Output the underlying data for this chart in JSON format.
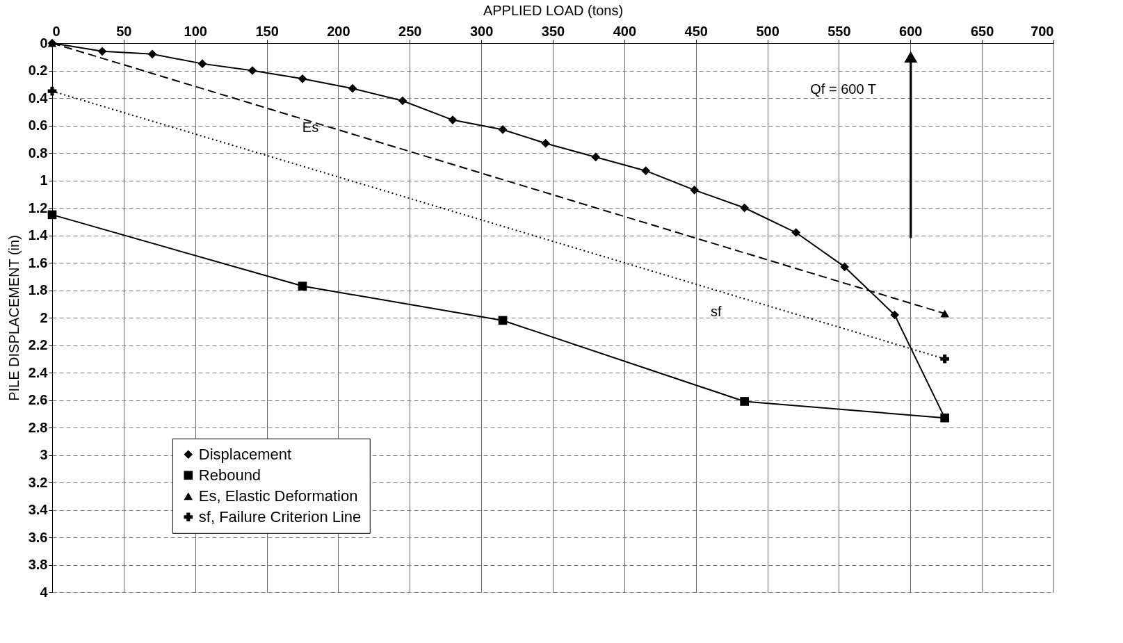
{
  "chart_data": {
    "type": "line",
    "xlabel": "APPLIED LOAD (tons)",
    "ylabel": "PILE DISPLACEMENT (in)",
    "xlim": [
      0,
      700
    ],
    "xticks": [
      0,
      50,
      100,
      150,
      200,
      250,
      300,
      350,
      400,
      450,
      500,
      550,
      600,
      650,
      700
    ],
    "ylim": [
      4,
      0
    ],
    "yticks": [
      0,
      0.2,
      0.4,
      0.6,
      0.8,
      1,
      1.2,
      1.4,
      1.6,
      1.8,
      2,
      2.2,
      2.4,
      2.6,
      2.8,
      3,
      3.2,
      3.4,
      3.6,
      3.8,
      4
    ],
    "grid": true,
    "legend": "bottom left",
    "series": [
      {
        "name": "Displacement",
        "color": "#000000",
        "marker": "diamond",
        "line_style": "solid",
        "x": [
          0,
          35,
          70,
          105,
          140,
          175,
          210,
          245,
          280,
          315,
          345,
          380,
          415,
          449,
          484,
          520,
          554,
          589,
          624
        ],
        "values": [
          0,
          0.06,
          0.08,
          0.15,
          0.2,
          0.26,
          0.33,
          0.42,
          0.56,
          0.63,
          0.73,
          0.83,
          0.93,
          1.07,
          1.2,
          1.38,
          1.63,
          1.98,
          2.73
        ]
      },
      {
        "name": "Rebound",
        "color": "#000000",
        "marker": "square",
        "line_style": "solid",
        "x": [
          0,
          175,
          315,
          484,
          624
        ],
        "values": [
          1.25,
          1.77,
          2.02,
          2.61,
          2.73
        ]
      },
      {
        "name": "Es, Elastic Deformation",
        "color": "#000000",
        "marker": "triangle",
        "line_style": "dashed",
        "x": [
          0,
          624
        ],
        "values": [
          0,
          1.97
        ]
      },
      {
        "name": "sf, Failure Criterion Line",
        "color": "#000000",
        "marker": "cross",
        "line_style": "dotted",
        "x": [
          0,
          624
        ],
        "values": [
          0.35,
          2.3
        ]
      }
    ],
    "annotations": [
      "Es",
      "sf",
      "Qf = 600 T"
    ]
  }
}
